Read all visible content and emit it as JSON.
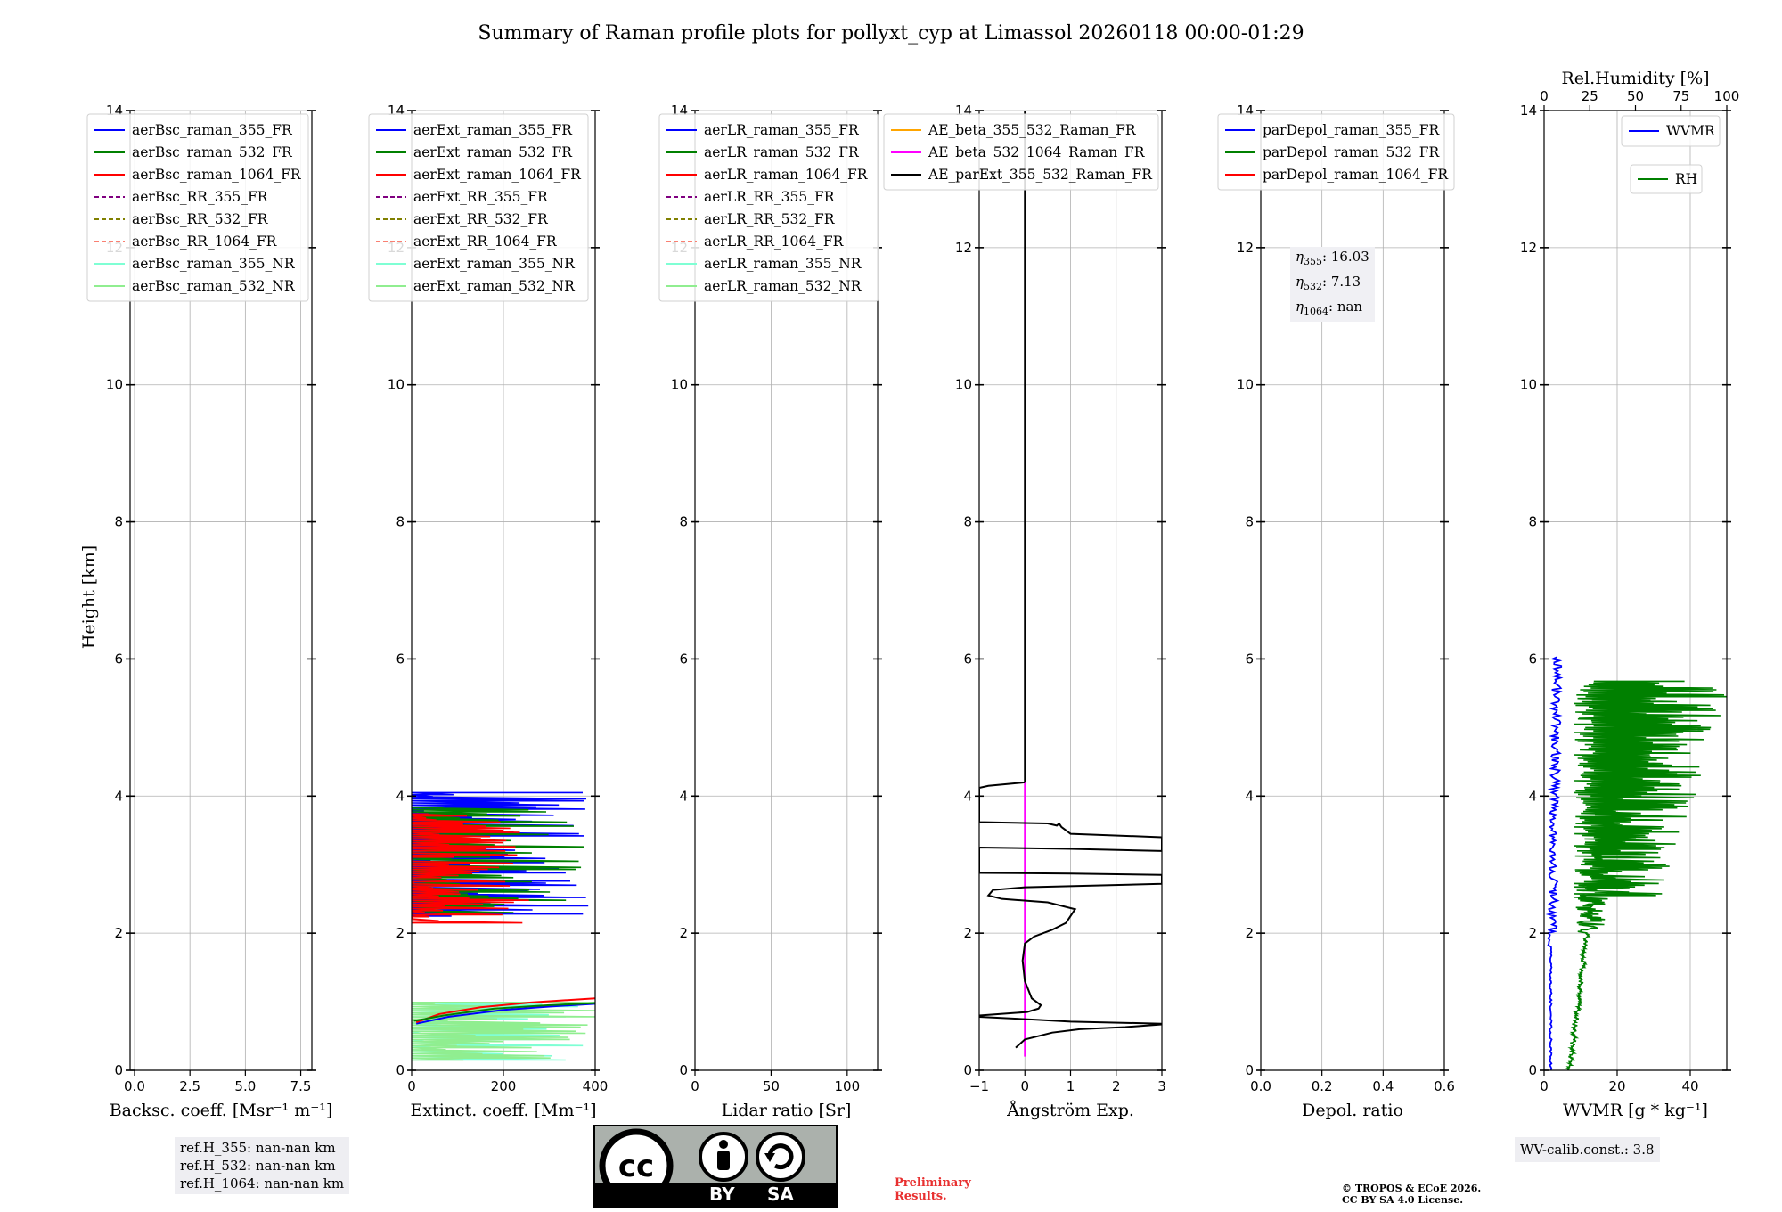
{
  "title": "Summary of Raman profile plots for pollyxt_cyp at Limassol 20260118 00:00-01:29",
  "colors": {
    "blue": "#0000ff",
    "green": "#008000",
    "red": "#ff0000",
    "purple": "#800080",
    "olive": "#808000",
    "salmon": "#fa8072",
    "cyan": "#7fffd4",
    "lightgreen": "#90ee90",
    "orange": "#ffa500",
    "magenta": "#ff00ff",
    "black": "#000000"
  },
  "chart_data": [
    {
      "type": "line",
      "id": "bsc",
      "xlabel": "Backsc. coeff. [Msr⁻¹ m⁻¹]",
      "ylabel": "Height [km]",
      "xlim": [
        -0.2,
        8.0
      ],
      "ylim": [
        0,
        14
      ],
      "xticks": [
        0.0,
        2.5,
        5.0,
        7.5
      ],
      "xtick_labels": [
        "0.0",
        "2.5",
        "5.0",
        "7.5"
      ],
      "yticks": [
        0,
        2,
        4,
        6,
        8,
        10,
        12,
        14
      ],
      "grid": true,
      "legend_position": "top-left",
      "legend": [
        {
          "label": "aerBsc_raman_355_FR",
          "color": "blue",
          "dash": false
        },
        {
          "label": "aerBsc_raman_532_FR",
          "color": "green",
          "dash": false
        },
        {
          "label": "aerBsc_raman_1064_FR",
          "color": "red",
          "dash": false
        },
        {
          "label": "aerBsc_RR_355_FR",
          "color": "purple",
          "dash": true
        },
        {
          "label": "aerBsc_RR_532_FR",
          "color": "olive",
          "dash": true
        },
        {
          "label": "aerBsc_RR_1064_FR",
          "color": "salmon",
          "dash": true
        },
        {
          "label": "aerBsc_raman_355_NR",
          "color": "cyan",
          "dash": false
        },
        {
          "label": "aerBsc_raman_532_NR",
          "color": "lightgreen",
          "dash": false
        }
      ],
      "series": []
    },
    {
      "type": "line",
      "id": "ext",
      "xlabel": "Extinct. coeff. [Mm⁻¹]",
      "xlim": [
        0,
        400
      ],
      "ylim": [
        0,
        14
      ],
      "xticks": [
        0,
        200,
        400
      ],
      "xtick_labels": [
        "0",
        "200",
        "400"
      ],
      "yticks": [
        0,
        2,
        4,
        6,
        8,
        10,
        12,
        14
      ],
      "grid": true,
      "legend_position": "top-left",
      "legend": [
        {
          "label": "aerExt_raman_355_FR",
          "color": "blue",
          "dash": false
        },
        {
          "label": "aerExt_raman_532_FR",
          "color": "green",
          "dash": false
        },
        {
          "label": "aerExt_raman_1064_FR",
          "color": "red",
          "dash": false
        },
        {
          "label": "aerExt_RR_355_FR",
          "color": "purple",
          "dash": true
        },
        {
          "label": "aerExt_RR_532_FR",
          "color": "olive",
          "dash": true
        },
        {
          "label": "aerExt_RR_1064_FR",
          "color": "salmon",
          "dash": true
        },
        {
          "label": "aerExt_raman_355_NR",
          "color": "cyan",
          "dash": false
        },
        {
          "label": "aerExt_raman_532_NR",
          "color": "lightgreen",
          "dash": false
        }
      ],
      "series": [
        {
          "name": "aerExt_raman_355_FR",
          "color": "blue",
          "mode": "zigzag",
          "range": [
            2.25,
            4.05
          ],
          "base": 200,
          "amp": 200,
          "seed": 3
        },
        {
          "name": "aerExt_raman_532_FR",
          "color": "green",
          "mode": "zigzag",
          "range": [
            2.3,
            3.85
          ],
          "base": 200,
          "amp": 180,
          "seed": 7
        },
        {
          "name": "aerExt_raman_1064_FR",
          "color": "red",
          "mode": "zigzag",
          "range": [
            2.15,
            3.75
          ],
          "base": 120,
          "amp": 150,
          "seed": 11
        },
        {
          "name": "aerExt_raman_355_NR",
          "color": "cyan",
          "mode": "zigzag",
          "range": [
            0.15,
            1.0
          ],
          "base": 180,
          "amp": 200,
          "seed": 5
        },
        {
          "name": "aerExt_raman_532_NR",
          "color": "lightgreen",
          "mode": "zigzag",
          "range": [
            0.15,
            1.0
          ],
          "base": 220,
          "amp": 200,
          "seed": 9
        },
        {
          "name": "aerExt_raman_355_FR_low",
          "color": "blue",
          "mode": "points",
          "x": [
            10,
            80,
            200,
            300,
            400
          ],
          "y": [
            0.68,
            0.78,
            0.88,
            0.93,
            0.97
          ]
        },
        {
          "name": "aerExt_raman_1064_FR_low",
          "color": "red",
          "mode": "points",
          "x": [
            10,
            60,
            150,
            260,
            400
          ],
          "y": [
            0.7,
            0.82,
            0.92,
            0.99,
            1.05
          ]
        },
        {
          "name": "aerExt_raman_532_FR_low",
          "color": "green",
          "mode": "points",
          "x": [
            5,
            70,
            180,
            300,
            400
          ],
          "y": [
            0.72,
            0.8,
            0.9,
            0.95,
            0.98
          ]
        }
      ]
    },
    {
      "type": "line",
      "id": "lr",
      "xlabel": "Lidar ratio [Sr]",
      "xlim": [
        0,
        120
      ],
      "ylim": [
        0,
        14
      ],
      "xticks": [
        0,
        50,
        100
      ],
      "xtick_labels": [
        "0",
        "50",
        "100"
      ],
      "yticks": [
        0,
        2,
        4,
        6,
        8,
        10,
        12,
        14
      ],
      "grid": true,
      "legend_position": "top-left",
      "legend": [
        {
          "label": "aerLR_raman_355_FR",
          "color": "blue",
          "dash": false
        },
        {
          "label": "aerLR_raman_532_FR",
          "color": "green",
          "dash": false
        },
        {
          "label": "aerLR_raman_1064_FR",
          "color": "red",
          "dash": false
        },
        {
          "label": "aerLR_RR_355_FR",
          "color": "purple",
          "dash": true
        },
        {
          "label": "aerLR_RR_532_FR",
          "color": "olive",
          "dash": true
        },
        {
          "label": "aerLR_RR_1064_FR",
          "color": "salmon",
          "dash": true
        },
        {
          "label": "aerLR_raman_355_NR",
          "color": "cyan",
          "dash": false
        },
        {
          "label": "aerLR_raman_532_NR",
          "color": "lightgreen",
          "dash": false
        }
      ],
      "series": []
    },
    {
      "type": "line",
      "id": "ae",
      "xlabel": "Ångström Exp.",
      "xlim": [
        -1,
        3
      ],
      "ylim": [
        0,
        14
      ],
      "xticks": [
        -1,
        0,
        1,
        2,
        3
      ],
      "xtick_labels": [
        "−1",
        "0",
        "1",
        "2",
        "3"
      ],
      "yticks": [
        0,
        2,
        4,
        6,
        8,
        10,
        12,
        14
      ],
      "grid": true,
      "legend_position": "top-left",
      "legend": [
        {
          "label": "AE_beta_355_532_Raman_FR",
          "color": "orange",
          "dash": false
        },
        {
          "label": "AE_beta_532_1064_Raman_FR",
          "color": "magenta",
          "dash": false
        },
        {
          "label": "AE_parExt_355_532_Raman_FR",
          "color": "black",
          "dash": false
        }
      ],
      "series": [
        {
          "name": "AE_beta_532_1064_Raman_FR",
          "color": "magenta",
          "mode": "points",
          "x": [
            0,
            0
          ],
          "y": [
            0.2,
            4.2
          ]
        },
        {
          "name": "AE_parExt_355_532_Raman_FR_top",
          "color": "black",
          "mode": "points",
          "x": [
            0,
            0
          ],
          "y": [
            4.2,
            14
          ]
        },
        {
          "name": "AE_parExt_355_532_Raman_FR",
          "color": "black",
          "mode": "points",
          "x": [
            -0.2,
            0,
            0.6,
            1.2,
            2.2,
            3.0,
            3.0,
            1.0,
            0.2,
            -1.0,
            -1.0,
            0.05,
            0.3,
            0.35,
            0.15,
            0.0,
            -0.05,
            0.0,
            0.2,
            0.6,
            0.9,
            1.1,
            0.5,
            -0.5,
            -0.8,
            -0.7,
            0.0,
            3.0,
            3.0,
            1.0,
            -1.0,
            -1.0,
            1.0,
            3.0,
            3.0,
            1.0,
            0.8,
            0.75,
            0.7,
            0.5,
            -1.0,
            -1.0,
            -0.8,
            0.0
          ],
          "y": [
            0.33,
            0.45,
            0.55,
            0.6,
            0.63,
            0.67,
            0.68,
            0.71,
            0.74,
            0.78,
            0.8,
            0.85,
            0.9,
            0.95,
            1.05,
            1.3,
            1.6,
            1.85,
            1.95,
            2.05,
            2.15,
            2.35,
            2.45,
            2.5,
            2.55,
            2.63,
            2.67,
            2.72,
            2.85,
            2.87,
            2.88,
            3.25,
            3.23,
            3.2,
            3.4,
            3.45,
            3.55,
            3.6,
            3.57,
            3.6,
            3.62,
            4.12,
            4.15,
            4.2
          ]
        }
      ]
    },
    {
      "type": "line",
      "id": "depol",
      "xlabel": "Depol. ratio",
      "xlim": [
        0.0,
        0.6
      ],
      "ylim": [
        0,
        14
      ],
      "xticks": [
        0.0,
        0.2,
        0.4,
        0.6
      ],
      "xtick_labels": [
        "0.0",
        "0.2",
        "0.4",
        "0.6"
      ],
      "yticks": [
        0,
        2,
        4,
        6,
        8,
        10,
        12,
        14
      ],
      "grid": true,
      "legend_position": "top-left",
      "legend": [
        {
          "label": "parDepol_raman_355_FR",
          "color": "blue",
          "dash": false
        },
        {
          "label": "parDepol_raman_532_FR",
          "color": "green",
          "dash": false
        },
        {
          "label": "parDepol_raman_1064_FR",
          "color": "red",
          "dash": false
        }
      ],
      "series": []
    },
    {
      "type": "line",
      "id": "wv",
      "xlabel": "WVMR [g * kg⁻¹]",
      "top_xlabel": "Rel.Humidity [%]",
      "xlim": [
        0,
        50
      ],
      "top_xlim": [
        0,
        100
      ],
      "ylim": [
        0,
        14
      ],
      "xticks": [
        0,
        20,
        40
      ],
      "xtick_labels": [
        "0",
        "20",
        "40"
      ],
      "top_xticks": [
        0,
        25,
        50,
        75,
        100
      ],
      "top_xtick_labels": [
        "0",
        "25",
        "50",
        "75",
        "100"
      ],
      "yticks": [
        0,
        2,
        4,
        6,
        8,
        10,
        12,
        14
      ],
      "grid": true,
      "legend_position": "top-right",
      "legend": [
        {
          "label": "WVMR",
          "color": "blue",
          "dash": false
        },
        {
          "label": "RH",
          "color": "green",
          "dash": false
        }
      ],
      "series": [
        {
          "name": "WVMR",
          "color": "blue",
          "mode": "wvmr",
          "range": [
            0.0,
            6.05
          ]
        },
        {
          "name": "RH",
          "color": "green",
          "mode": "rh",
          "range": [
            0.0,
            5.7
          ]
        }
      ]
    }
  ],
  "annotations": {
    "refH": [
      "ref.H_355: nan-nan km",
      "ref.H_532: nan-nan km",
      "ref.H_1064: nan-nan km"
    ],
    "eta": [
      {
        "sym": "η",
        "sub": "355",
        "value": ": 16.03"
      },
      {
        "sym": "η",
        "sub": "532",
        "value": ": 7.13"
      },
      {
        "sym": "η",
        "sub": "1064",
        "value": ": nan"
      }
    ],
    "wv_calib": "WV-calib.const.: 3.8",
    "preliminary": [
      "Preliminary",
      "Results."
    ],
    "copyright": [
      "© TROPOS & ECoE 2026.",
      "CC BY SA 4.0 License."
    ],
    "cc_badge": {
      "left": "BY",
      "right": "SA"
    }
  }
}
